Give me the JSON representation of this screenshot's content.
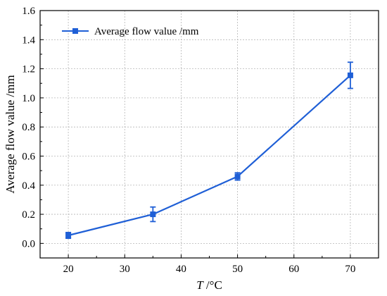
{
  "chart_data": {
    "type": "line",
    "title": "",
    "xlabel": {
      "italic": "T",
      "rest": " /°C"
    },
    "ylabel": "Average flow value /mm",
    "xlim": [
      15,
      75
    ],
    "ylim": [
      -0.1,
      1.6
    ],
    "x_ticks": [
      "20",
      "30",
      "40",
      "50",
      "60",
      "70"
    ],
    "y_ticks": [
      "0.0",
      "0.2",
      "0.4",
      "0.6",
      "0.8",
      "1.0",
      "1.2",
      "1.4",
      "1.6"
    ],
    "grid": true,
    "legend_position": "top-left",
    "series": [
      {
        "name": "Average flow value /mm",
        "color": "#1f5fd6",
        "marker": "square",
        "x": [
          20,
          35,
          50,
          70
        ],
        "y": [
          0.055,
          0.2,
          0.46,
          1.155
        ],
        "error": [
          0.02,
          0.05,
          0.025,
          0.09
        ]
      }
    ]
  }
}
